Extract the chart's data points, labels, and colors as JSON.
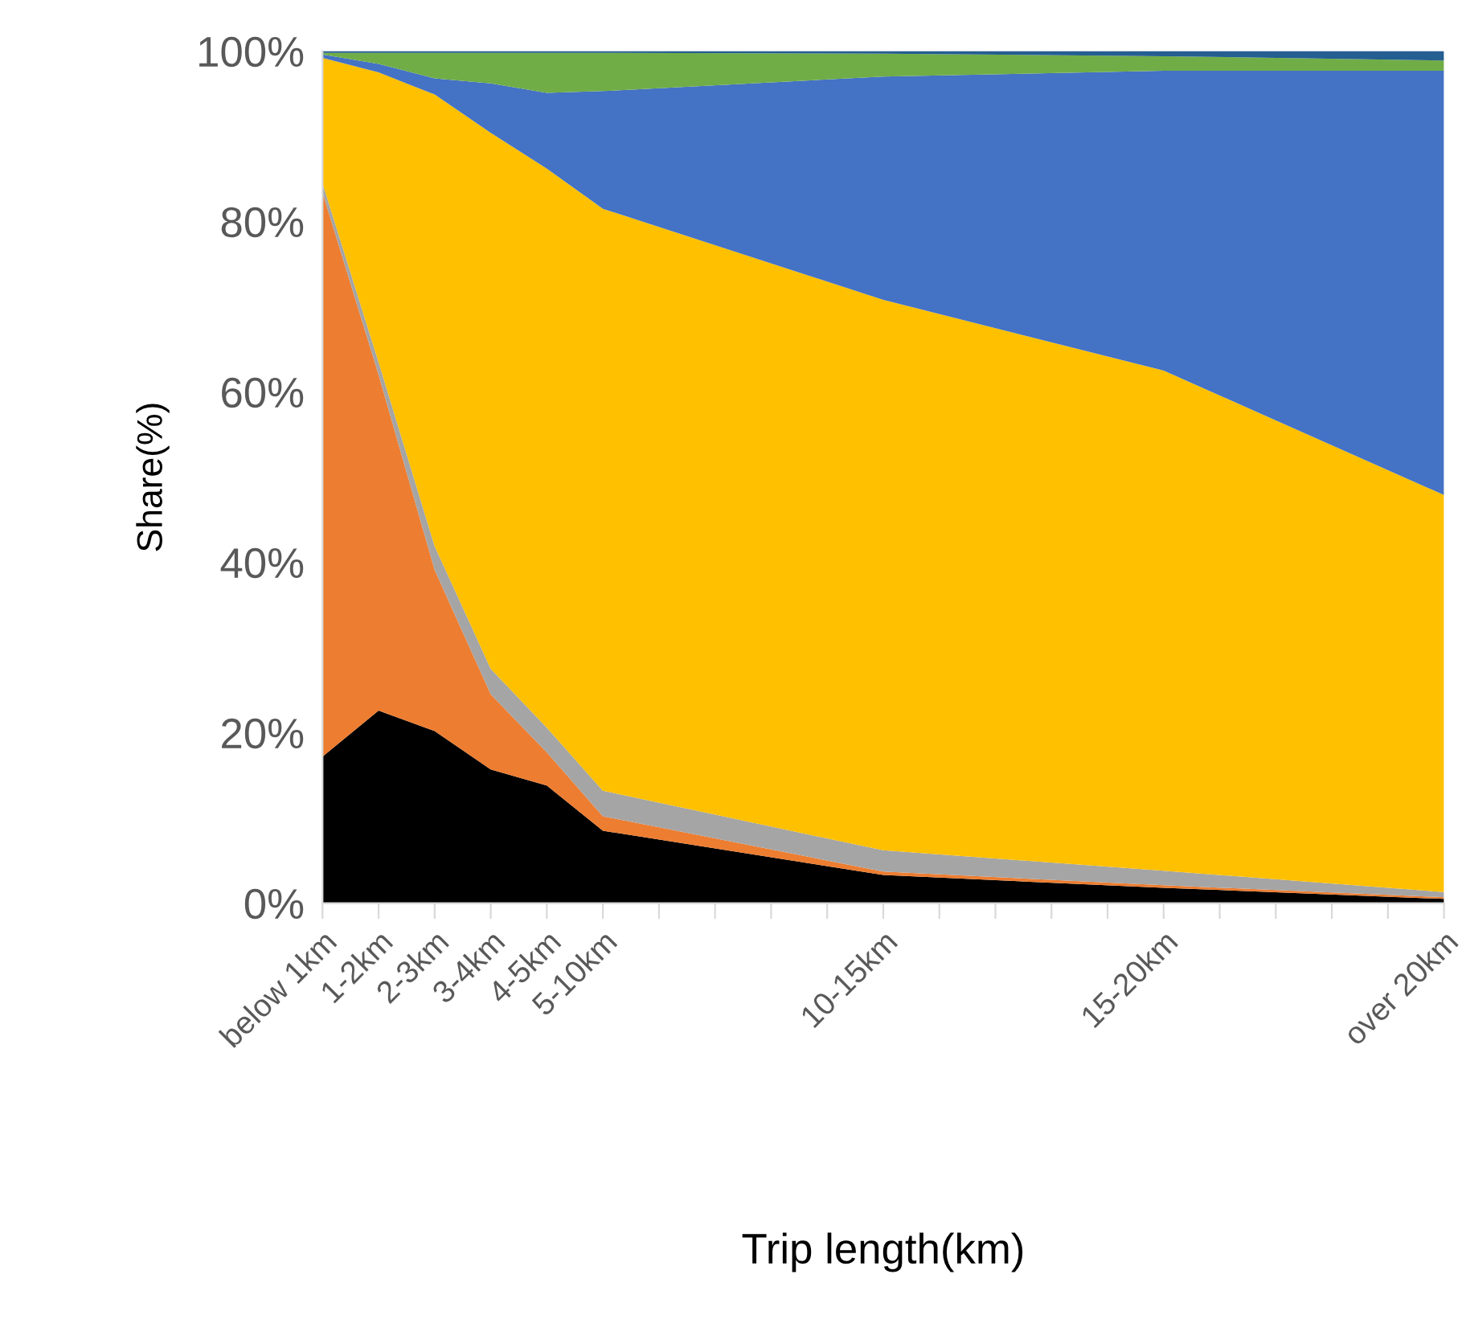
{
  "chart_data": {
    "type": "area",
    "stacked": true,
    "xlabel": "Trip length(km)",
    "ylabel": "Share(%)",
    "categories": [
      "below 1km",
      "1-2km",
      "2-3km",
      "3-4km",
      "4-5km",
      "5-10km",
      null,
      null,
      null,
      null,
      "10-15km",
      null,
      null,
      null,
      null,
      "15-20km",
      null,
      null,
      null,
      null,
      "over 20km"
    ],
    "ylim": [
      0,
      100
    ],
    "yticks": [
      {
        "value": 0,
        "label": "0%"
      },
      {
        "value": 20,
        "label": "20%"
      },
      {
        "value": 40,
        "label": "40%"
      },
      {
        "value": 60,
        "label": "60%"
      },
      {
        "value": 80,
        "label": "80%"
      },
      {
        "value": 100,
        "label": "100%"
      }
    ],
    "series": [
      {
        "color": "#000000",
        "values": [
          17.2,
          22.6,
          20.2,
          15.7,
          13.8,
          8.5,
          null,
          null,
          null,
          null,
          3.3,
          null,
          null,
          null,
          null,
          1.8,
          null,
          null,
          null,
          null,
          0.5
        ]
      },
      {
        "color": "#ed7d31",
        "values": [
          66.2,
          39.4,
          18.9,
          8.8,
          3.9,
          1.7,
          null,
          null,
          null,
          null,
          0.4,
          null,
          null,
          null,
          null,
          0.3,
          null,
          null,
          null,
          null,
          0.2
        ]
      },
      {
        "color": "#a5a5a5",
        "values": [
          1.1,
          1.5,
          2.8,
          3.0,
          2.9,
          3.0,
          null,
          null,
          null,
          null,
          2.5,
          null,
          null,
          null,
          null,
          1.7,
          null,
          null,
          null,
          null,
          0.6
        ]
      },
      {
        "color": "#ffc000",
        "values": [
          14.7,
          34.0,
          53.0,
          62.9,
          65.6,
          68.3,
          null,
          null,
          null,
          null,
          64.6,
          null,
          null,
          null,
          null,
          58.7,
          null,
          null,
          null,
          null,
          46.6
        ]
      },
      {
        "color": "#4472c4",
        "values": [
          0.4,
          1.0,
          1.9,
          5.8,
          8.9,
          13.8,
          null,
          null,
          null,
          null,
          26.2,
          null,
          null,
          null,
          null,
          35.2,
          null,
          null,
          null,
          null,
          49.8
        ]
      },
      {
        "color": "#70ad47",
        "values": [
          0.2,
          1.3,
          3.0,
          3.6,
          4.7,
          4.5,
          null,
          null,
          null,
          null,
          2.7,
          null,
          null,
          null,
          null,
          1.7,
          null,
          null,
          null,
          null,
          1.2
        ]
      },
      {
        "color": "#255e91",
        "values": [
          0.2,
          0.2,
          0.2,
          0.2,
          0.2,
          0.2,
          null,
          null,
          null,
          null,
          0.3,
          null,
          null,
          null,
          null,
          0.6,
          null,
          null,
          null,
          null,
          1.1
        ]
      }
    ]
  }
}
